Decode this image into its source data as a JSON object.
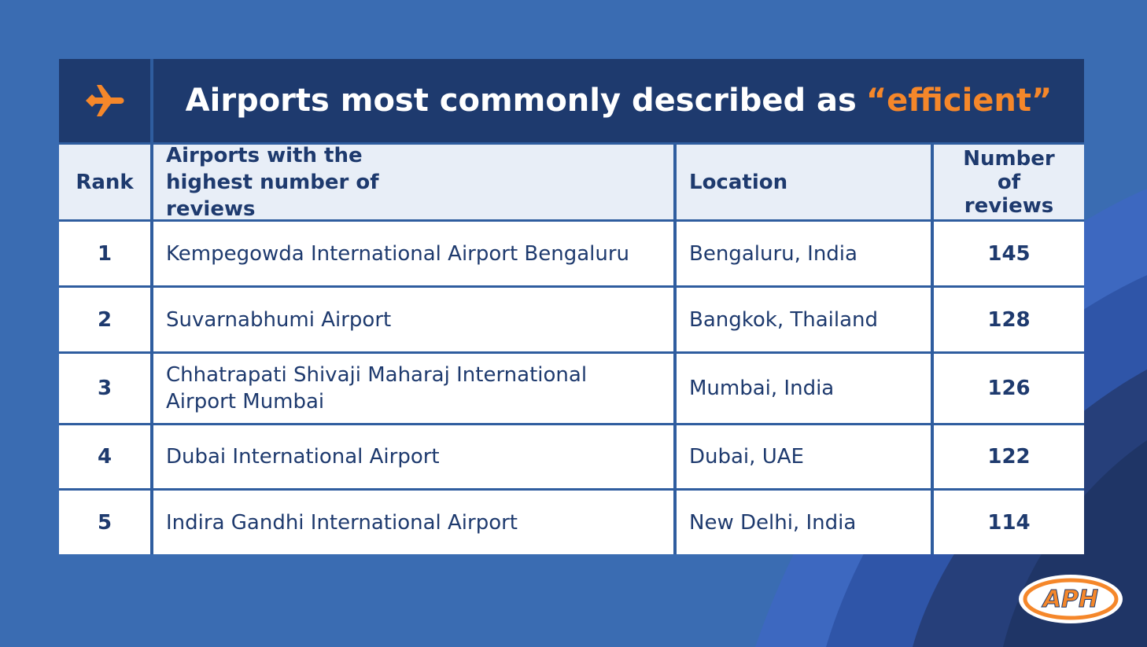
{
  "title": {
    "text": "Airports most commonly described as",
    "highlight": "“efficient”"
  },
  "table": {
    "headers": [
      "Rank",
      "Airports with the highest number of reviews",
      "Location",
      "Number of reviews"
    ],
    "rows": [
      [
        1,
        "Kempegowda International Airport Bengaluru",
        "Bengaluru, India",
        145
      ],
      [
        2,
        "Suvarnabhumi Airport",
        "Bangkok, Thailand",
        128
      ],
      [
        3,
        "Chhatrapati Shivaji Maharaj International Airport Mumbai",
        "Mumbai, India",
        126
      ],
      [
        4,
        "Dubai International Airport",
        "Dubai, UAE",
        122
      ],
      [
        5,
        "Indira Gandhi International Airport",
        "New Delhi, India",
        114
      ]
    ]
  },
  "logo": {
    "text": "APH"
  }
}
